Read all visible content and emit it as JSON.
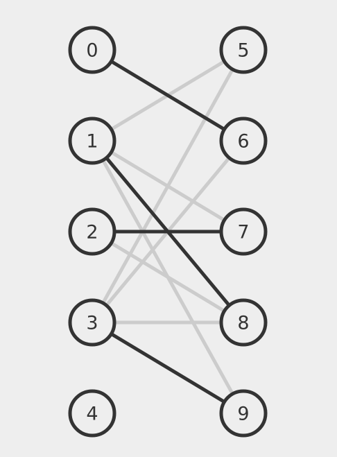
{
  "graph": {
    "left_nodes": [
      "0",
      "1",
      "2",
      "3",
      "4"
    ],
    "right_nodes": [
      "5",
      "6",
      "7",
      "8",
      "9"
    ],
    "edges": [
      {
        "from": "1",
        "to": "5",
        "style": "light"
      },
      {
        "from": "3",
        "to": "5",
        "style": "light"
      },
      {
        "from": "3",
        "to": "6",
        "style": "light"
      },
      {
        "from": "1",
        "to": "7",
        "style": "light"
      },
      {
        "from": "1",
        "to": "9",
        "style": "light"
      },
      {
        "from": "2",
        "to": "8",
        "style": "light"
      },
      {
        "from": "3",
        "to": "8",
        "style": "light"
      },
      {
        "from": "0",
        "to": "6",
        "style": "dark"
      },
      {
        "from": "1",
        "to": "8",
        "style": "dark"
      },
      {
        "from": "2",
        "to": "7",
        "style": "dark"
      },
      {
        "from": "3",
        "to": "9",
        "style": "dark"
      }
    ],
    "colors": {
      "background": "#eeeeee",
      "dark_edge": "#333333",
      "light_edge": "#cccccc",
      "node_stroke": "#333333",
      "label": "#333333"
    }
  }
}
